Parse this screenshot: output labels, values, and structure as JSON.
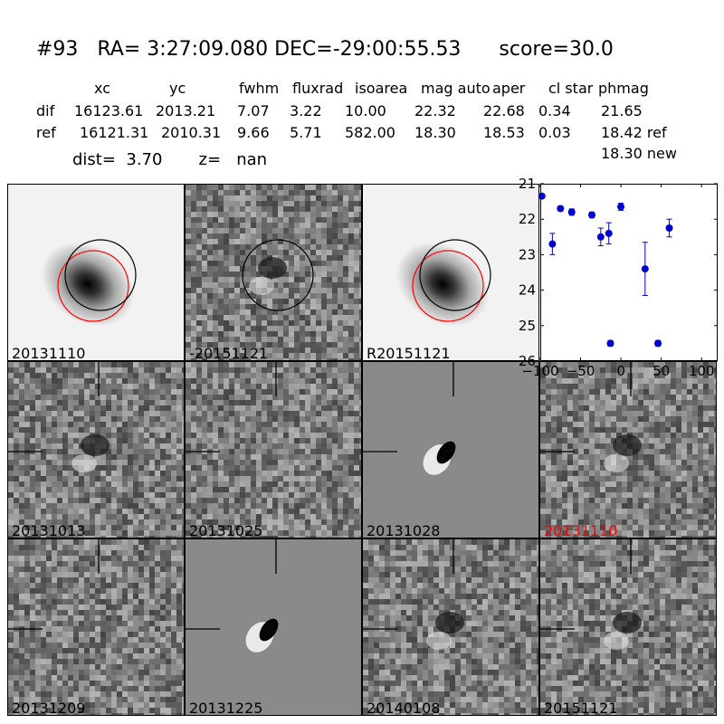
{
  "header": {
    "title": "#93   RA= 3:27:09.080 DEC=-29:00:55.53      score=30.0",
    "columns": [
      "xc",
      "yc",
      "fwhm",
      "fluxrad",
      "isoarea",
      "mag auto",
      "aper",
      "cl star",
      "phmag"
    ],
    "rows": [
      {
        "label": "dif",
        "values": [
          "16123.61",
          "2013.21",
          "7.07",
          "3.22",
          "10.00",
          "22.32",
          "22.68",
          "0.34",
          "21.65"
        ]
      },
      {
        "label": "ref",
        "values": [
          "16121.31",
          "2010.31",
          "9.66",
          "5.71",
          "582.00",
          "18.30",
          "18.53",
          "0.03",
          "18.42 ref"
        ]
      }
    ],
    "extra_phmag": "18.30 new",
    "dist_line": "dist=  3.70       z=   nan"
  },
  "panels": [
    {
      "label": "20131110",
      "style": "galaxy",
      "circles": [
        "red",
        "black"
      ],
      "label_color": "#000000"
    },
    {
      "label": "-20151121",
      "style": "noise_dipole",
      "circles": [
        "black"
      ],
      "label_color": "#000000"
    },
    {
      "label": "R20151121",
      "style": "galaxy",
      "circles": [
        "red",
        "black"
      ],
      "label_color": "#000000"
    },
    {
      "label": "20131013",
      "style": "noise_dipole",
      "crosshair": true,
      "label_color": "#000000"
    },
    {
      "label": "20131025",
      "style": "noise",
      "crosshair": true,
      "label_color": "#000000"
    },
    {
      "label": "20131028",
      "style": "smooth_dipole",
      "crosshair": true,
      "label_color": "#000000"
    },
    {
      "label": "20131110",
      "style": "noise_dipole",
      "crosshair": true,
      "label_color": "#ff0000"
    },
    {
      "label": "20131209",
      "style": "noise",
      "crosshair": true,
      "label_color": "#000000"
    },
    {
      "label": "20131225",
      "style": "smooth_dipole",
      "crosshair": true,
      "label_color": "#000000"
    },
    {
      "label": "20140108",
      "style": "noise_dipole",
      "crosshair": true,
      "label_color": "#000000"
    },
    {
      "label": "20151121",
      "style": "noise_dipole",
      "crosshair": true,
      "label_color": "#000000"
    }
  ],
  "chart_data": {
    "type": "scatter",
    "xlim": [
      -100,
      120
    ],
    "ylim": [
      26,
      21
    ],
    "xticks": [
      -100,
      -50,
      0,
      50,
      100
    ],
    "yticks": [
      21,
      22,
      23,
      24,
      25,
      26
    ],
    "marker_color": "#0000cc",
    "points": [
      {
        "x": -98,
        "y": 21.35,
        "err": 0.05
      },
      {
        "x": -85,
        "y": 22.7,
        "err": 0.3
      },
      {
        "x": -75,
        "y": 21.7,
        "err": 0.07
      },
      {
        "x": -61,
        "y": 21.8,
        "err": 0.09
      },
      {
        "x": -36,
        "y": 21.88,
        "err": 0.08
      },
      {
        "x": -25,
        "y": 22.5,
        "err": 0.25
      },
      {
        "x": -15,
        "y": 22.4,
        "err": 0.3
      },
      {
        "x": -13,
        "y": 25.5,
        "err": 0.08
      },
      {
        "x": 0,
        "y": 21.65,
        "err": 0.1
      },
      {
        "x": 30,
        "y": 23.4,
        "err": 0.75
      },
      {
        "x": 46,
        "y": 25.5,
        "err": 0.08
      },
      {
        "x": 60,
        "y": 22.25,
        "err": 0.25
      }
    ]
  }
}
